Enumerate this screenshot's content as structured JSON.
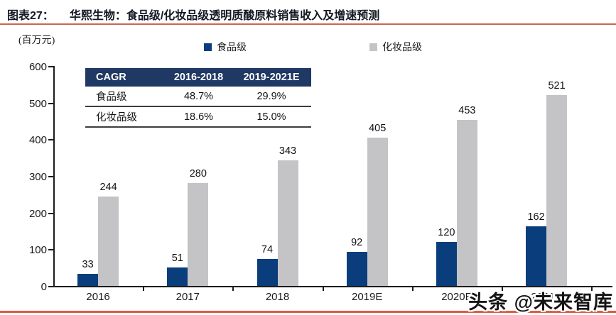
{
  "figure": {
    "label": "图表27：",
    "title": "华熙生物：食品级/化妆品级透明质酸原料销售收入及增速预测",
    "unit_label": "(百万元)",
    "accent_color_top": "#CE6452",
    "accent_color_bottom": "#DC5B44"
  },
  "legend": [
    {
      "name": "食品级",
      "color": "#0A3D7C"
    },
    {
      "name": "化妆品级",
      "color": "#C4C4C6"
    }
  ],
  "cagr_table": {
    "header_bg": "#1F3864",
    "headers": [
      "CAGR",
      "2016-2018",
      "2019-2021E"
    ],
    "rows": [
      {
        "label": "食品级",
        "values": [
          "48.7%",
          "29.9%"
        ]
      },
      {
        "label": "化妆品级",
        "values": [
          "18.6%",
          "15.0%"
        ]
      }
    ]
  },
  "chart_data": {
    "type": "bar",
    "title": "华熙生物：食品级/化妆品级透明质酸原料销售收入及增速预测",
    "ylabel": "(百万元)",
    "categories": [
      "2016",
      "2017",
      "2018",
      "2019E",
      "2020E",
      "2021E"
    ],
    "series": [
      {
        "name": "食品级",
        "color": "#0A3D7C",
        "values": [
          33,
          51,
          74,
          92,
          120,
          162
        ]
      },
      {
        "name": "化妆品级",
        "color": "#C4C4C6",
        "values": [
          244,
          280,
          343,
          405,
          453,
          521
        ]
      }
    ],
    "ylim": [
      0,
      600
    ],
    "yticks": [
      0,
      100,
      200,
      300,
      400,
      500,
      600
    ],
    "grid": false,
    "legend_position": "top",
    "value_labels": true
  },
  "watermark": {
    "text": "头条 @未来智库"
  }
}
